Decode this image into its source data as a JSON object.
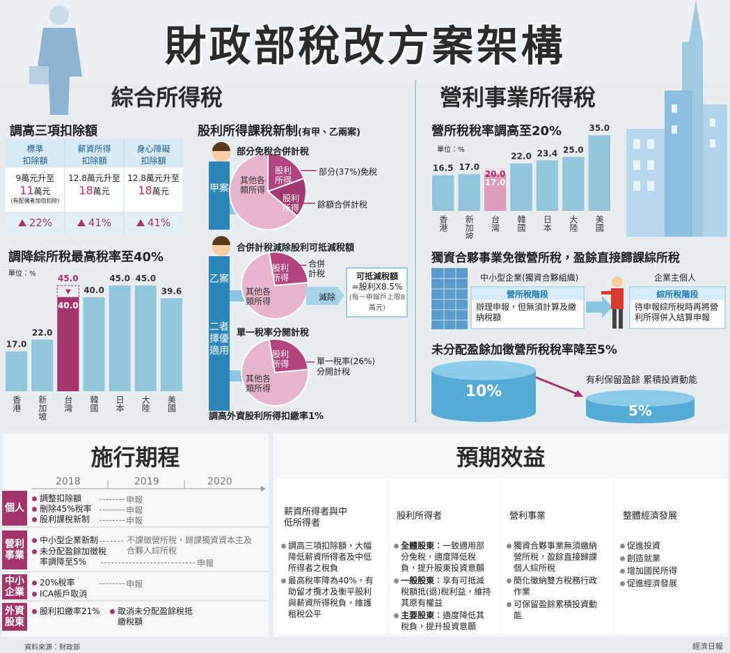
{
  "header": {
    "title": "財政部稅改方案架構"
  },
  "income_tax": {
    "heading": "綜合所得稅",
    "deductions": {
      "heading": "調高三項扣除額",
      "columns": [
        {
          "name": [
            "標準",
            "扣除額"
          ],
          "from": "9萬元升至",
          "to": "11",
          "unit": "萬元",
          "note": "(有配偶者加倍扣除)",
          "increase": "22%"
        },
        {
          "name": [
            "薪資所得",
            "扣除額"
          ],
          "from": "12.8萬元升至",
          "to": "18",
          "unit": "萬元",
          "increase": "41%"
        },
        {
          "name": [
            "身心障礙",
            "扣除額"
          ],
          "from": "12.8萬元升至",
          "to": "18",
          "unit": "萬元",
          "increase": "41%"
        }
      ]
    },
    "dividend": {
      "heading": "股利所得課稅新制",
      "heading_note": "(有甲、乙兩案)",
      "plan_a": {
        "label": "甲案",
        "title": "部分免稅合併計稅",
        "slices": [
          "其他各類所得",
          "股利所得",
          "股利所得"
        ],
        "callouts": [
          "部分(37%)免稅",
          "餘額合併計稅"
        ]
      },
      "plan_b": {
        "label": "乙案",
        "title": "合併計稅減除股利可抵減稅額",
        "slices": [
          "股利所得",
          "其他各類所得"
        ],
        "callout": "合併計稅",
        "action": "減除",
        "box": [
          "可抵減稅額",
          "=股利X8.5%",
          "(每一申報戶上限8萬元)"
        ]
      },
      "either": "二者擇優適用",
      "plan_c": {
        "title": "單一稅率分開計稅",
        "slices": [
          "股利所得",
          "其他各類所得"
        ],
        "callout": "單一稅率(26%)分開計稅"
      },
      "footer": "調高外資股利所得扣繳率1%"
    }
  },
  "business_tax": {
    "heading": "營利事業所得稅",
    "sole": {
      "heading": "獨資合夥事業免徵營所稅，盈餘直接歸課綜所稅",
      "left_label": "中小型企業(獨資合夥組織)",
      "left_title": "營所稅階段",
      "left_text": "辦理申報，但無須計算及繳納稅額",
      "right_label": "企業主個人",
      "right_title": "綜所稅階段",
      "right_text": "待申報綜所稅時再將營利所得併入結算申報"
    },
    "retained": {
      "heading": "未分配盈餘加徵營所稅稅率降至5%",
      "before": "10%",
      "after": "5%",
      "caption": "有利保留盈餘 累積投資動能"
    }
  },
  "chart_data": [
    {
      "type": "bar",
      "title": "調降綜所稅最高稅率至40%",
      "unit_label": "單位：%",
      "categories": [
        "香港",
        "新加坡",
        "台灣",
        "韓國",
        "日本",
        "大陸",
        "美國"
      ],
      "values": [
        17,
        22,
        40,
        40,
        45,
        45,
        39.6
      ],
      "value_labels": [
        "17.0",
        "22.0",
        "40.0",
        "40.0",
        "45.0",
        "45.0",
        "39.6"
      ],
      "previous_values": [
        null,
        null,
        45,
        null,
        null,
        null,
        null
      ],
      "previous_value_labels": [
        null,
        null,
        "45.0",
        null,
        null,
        null,
        null
      ],
      "colors": [
        "#93c6dc",
        "#93c6dc",
        "#a5336c",
        "#93c6dc",
        "#93c6dc",
        "#93c6dc",
        "#93c6dc"
      ],
      "previous_color": "#a5336c",
      "ylim": [
        0,
        48
      ]
    },
    {
      "type": "bar",
      "title": "營所稅稅率調高至20%",
      "unit_label": "單位：%",
      "categories": [
        "香港",
        "新加坡",
        "台灣",
        "韓國",
        "日本",
        "大陸",
        "美國"
      ],
      "values": [
        16.5,
        17,
        20,
        22,
        23.4,
        25,
        35
      ],
      "value_labels": [
        "16.5",
        "17.0",
        "20.0",
        "22.0",
        "23.4",
        "25.0",
        "35.0"
      ],
      "previous_values": [
        null,
        null,
        17,
        null,
        null,
        null,
        null
      ],
      "previous_value_labels": [
        null,
        null,
        "17.0",
        null,
        null,
        null,
        null
      ],
      "colors": [
        "#93c6dc",
        "#93c6dc",
        "#f6dae7",
        "#93c6dc",
        "#93c6dc",
        "#93c6dc",
        "#93c6dc"
      ],
      "previous_color": "#dc9cbd",
      "ylim": [
        0,
        37
      ]
    }
  ],
  "schedule": {
    "heading": "施行期程",
    "years": [
      "2018",
      "2019",
      "2020"
    ],
    "groups": [
      {
        "label": "個人",
        "items": [
          {
            "text": "調整扣除額",
            "filing": "申報"
          },
          {
            "text": "刪除45%稅率",
            "filing": "申報"
          },
          {
            "text": "股利課稅新制",
            "filing": "申報"
          }
        ]
      },
      {
        "label": "營利事業",
        "items": [
          {
            "text": "中小型企業新制",
            "note": "不課徵營所稅，歸課獨資資本主及合夥人綜所稅"
          },
          {
            "text": "未分配盈餘加徵稅率調降至5%",
            "filing": "申報"
          }
        ]
      },
      {
        "label": "中小企業",
        "items": [
          {
            "text": "20%稅率",
            "filing": "申報"
          },
          {
            "text": "ICA帳戶取消"
          }
        ]
      },
      {
        "label": "外資股東",
        "items": [
          {
            "text": "股利扣繳率21%",
            "note": "取消未分配盈餘稅抵繳稅額"
          }
        ]
      }
    ]
  },
  "benefits": {
    "heading": "預期效益",
    "columns": [
      {
        "title": "薪資所得者與中低所得者",
        "points": [
          "調高三項扣除額，大幅降低薪資所得者及中低所得者之稅負",
          "最高稅率降為40%，有助留才攬才及衡平股利與薪資所得稅負，維護租稅公平"
        ]
      },
      {
        "title": "股利所得者",
        "points": [
          {
            "bold": "全體股東",
            "text": "：一致適用部分免稅，適度降低稅負，提升股東投資意願"
          },
          {
            "bold": "一般股東",
            "text": "：享有可抵減稅額抵(退)稅利益，維持其原有權益"
          },
          {
            "bold": "主要股東",
            "text": "：適度降低其稅負，提升投資意願"
          }
        ]
      },
      {
        "title": "營利事業",
        "points": [
          "獨資合夥事業無須繳納營所稅，盈餘直接歸課個人綜所稅",
          "簡化徵納雙方稅務行政作業",
          "可保留盈餘累積投資動能"
        ]
      },
      {
        "title": "整體經濟發展",
        "points": [
          "促進投資",
          "創造就業",
          "增加國民所得",
          "促進經濟發展"
        ]
      }
    ]
  },
  "footer": {
    "source": "資料來源：財政部",
    "publisher": "經濟日報"
  }
}
